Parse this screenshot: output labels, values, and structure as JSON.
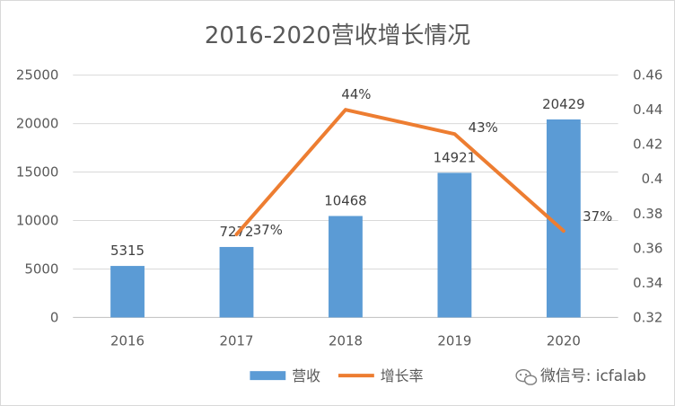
{
  "chart_data": {
    "type": "bar",
    "title": "2016-2020营收增长情况",
    "categories": [
      "2016",
      "2017",
      "2018",
      "2019",
      "2020"
    ],
    "series": [
      {
        "name": "营收",
        "type": "bar",
        "axis": "left",
        "values": [
          5315,
          7272,
          10468,
          14921,
          20429
        ],
        "data_labels": [
          "5315",
          "7272",
          "10468",
          "14921",
          "20429"
        ],
        "color": "#5b9bd5"
      },
      {
        "name": "增长率",
        "type": "line",
        "axis": "right",
        "x": [
          "2017",
          "2018",
          "2019",
          "2020"
        ],
        "values": [
          0.368,
          0.44,
          0.426,
          0.37
        ],
        "data_labels": [
          "37%",
          "44%",
          "43%",
          "37%"
        ],
        "color": "#ed7d31"
      }
    ],
    "y_left": {
      "range": [
        0,
        25000
      ],
      "ticks": [
        "0",
        "5000",
        "10000",
        "15000",
        "20000",
        "25000"
      ]
    },
    "y_right": {
      "range": [
        0.32,
        0.46
      ],
      "ticks": [
        "0.32",
        "0.34",
        "0.36",
        "0.38",
        "0.4",
        "0.42",
        "0.44",
        "0.46"
      ]
    },
    "grid": true,
    "legend_position": "bottom"
  },
  "watermark": {
    "text": "微信号: icfalab",
    "icon": "wechat-icon"
  }
}
